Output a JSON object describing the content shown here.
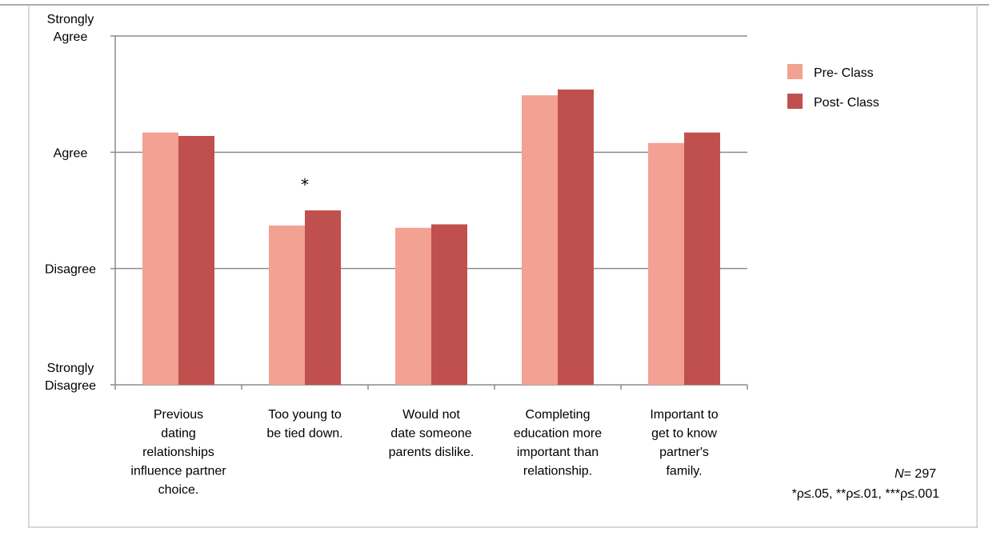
{
  "chart_data": {
    "type": "bar",
    "categories": [
      [
        "Previous",
        "dating",
        "relationships",
        "influence partner",
        "choice."
      ],
      [
        "Too young to",
        "be tied down."
      ],
      [
        "Would not",
        "date someone",
        "parents dislike."
      ],
      [
        "Completing",
        "education more",
        "important than",
        "relationship."
      ],
      [
        "Important to",
        "get to know",
        "partner's",
        "family."
      ]
    ],
    "y_ticks": [
      {
        "value": 1,
        "lines": [
          "Strongly",
          "Disagree"
        ]
      },
      {
        "value": 2,
        "lines": [
          "Disagree"
        ]
      },
      {
        "value": 3,
        "lines": [
          "Agree"
        ]
      },
      {
        "value": 4,
        "lines": [
          "Strongly",
          "Agree"
        ]
      }
    ],
    "ylim": [
      1,
      4
    ],
    "grid": true,
    "legend_position": "right",
    "series": [
      {
        "name": "Pre- Class",
        "color": "#f2a193",
        "values": [
          3.17,
          2.37,
          2.35,
          3.49,
          3.08
        ]
      },
      {
        "name": "Post- Class",
        "color": "#c0504d",
        "values": [
          3.14,
          2.5,
          2.38,
          3.54,
          3.17
        ]
      }
    ],
    "annotations": [
      {
        "category_index": 1,
        "series_index": 1,
        "text": "*"
      }
    ],
    "footnote": {
      "n_label": "N",
      "n_value": "= 297",
      "significance": "*ρ≤.05, **ρ≤.01, ***ρ≤.001"
    }
  }
}
